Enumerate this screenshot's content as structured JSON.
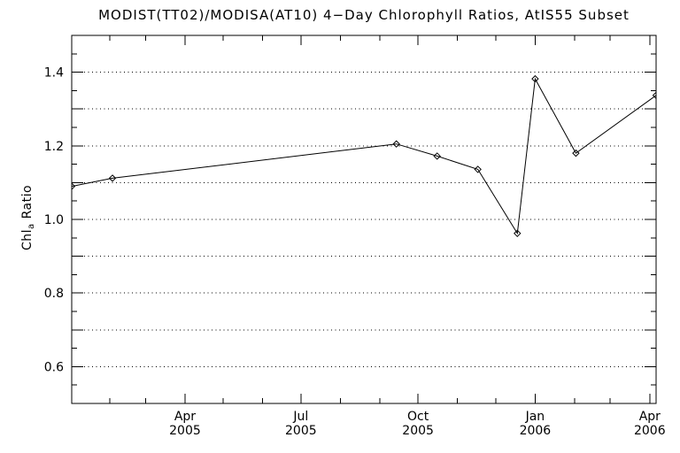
{
  "chart_data": {
    "type": "line",
    "title": "MODIST(TT02)/MODISA(AT10) 4−Day Chlorophyll Ratios, AtIS55 Subset",
    "ylabel": {
      "prefix": "Chl",
      "subscript": "a",
      "suffix": " Ratio"
    },
    "ylim": [
      0.5,
      1.5
    ],
    "xlim": [
      "2005-01-02",
      "2006-04-06"
    ],
    "y_major_ticks": [
      {
        "value": 0.6,
        "label": "0.6"
      },
      {
        "value": 0.8,
        "label": "0.8"
      },
      {
        "value": 1.0,
        "label": "1.0"
      },
      {
        "value": 1.2,
        "label": "1.2"
      },
      {
        "value": 1.4,
        "label": "1.4"
      }
    ],
    "y_grid_values": [
      0.6,
      0.7,
      0.8,
      0.9,
      1.0,
      1.1,
      1.2,
      1.3,
      1.4
    ],
    "y_minor_step": 0.05,
    "grid_style": "dotted",
    "x_major_ticks": [
      {
        "date": "2005-04-01",
        "month": "Apr",
        "year": "2005"
      },
      {
        "date": "2005-07-01",
        "month": "Jul",
        "year": "2005"
      },
      {
        "date": "2005-10-01",
        "month": "Oct",
        "year": "2005"
      },
      {
        "date": "2006-01-01",
        "month": "Jan",
        "year": "2006"
      },
      {
        "date": "2006-04-01",
        "month": "Apr",
        "year": "2006"
      }
    ],
    "x_minor_tick_dates": [
      "2005-02-01",
      "2005-03-01",
      "2005-05-01",
      "2005-06-01",
      "2005-08-01",
      "2005-09-01",
      "2005-11-01",
      "2005-12-01",
      "2006-02-01",
      "2006-03-01"
    ],
    "series": [
      {
        "name": "chlorophyll-ratio",
        "marker": "diamond",
        "points": [
          {
            "date": "2005-01-02",
            "value": 1.09
          },
          {
            "date": "2005-02-03",
            "value": 1.112
          },
          {
            "date": "2005-09-14",
            "value": 1.205
          },
          {
            "date": "2005-10-16",
            "value": 1.172
          },
          {
            "date": "2005-11-17",
            "value": 1.136
          },
          {
            "date": "2005-12-18",
            "value": 0.962
          },
          {
            "date": "2006-01-01",
            "value": 1.382
          },
          {
            "date": "2006-02-02",
            "value": 1.18
          },
          {
            "date": "2006-04-06",
            "value": 1.337
          }
        ]
      }
    ],
    "colors": {
      "foreground": "#000000",
      "background": "#ffffff"
    }
  }
}
